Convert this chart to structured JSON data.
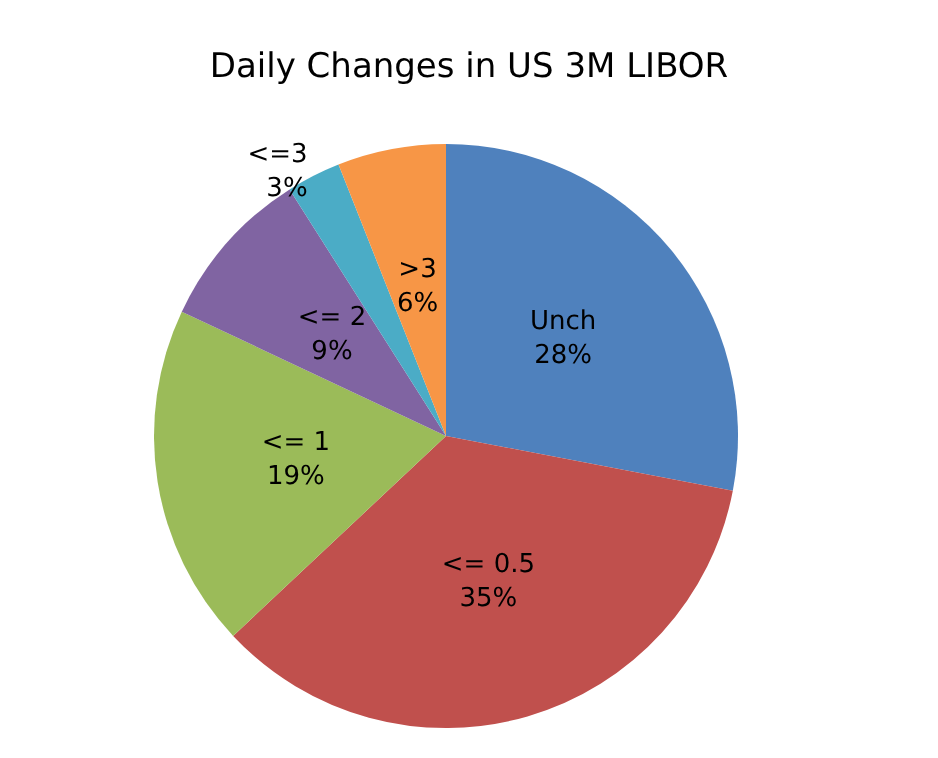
{
  "chart_data": {
    "type": "pie",
    "title": "Daily Changes in US 3M LIBOR",
    "categories": [
      "Unch",
      "<= 0.5",
      "<= 1",
      "<= 2",
      "<=3",
      ">3"
    ],
    "values": [
      28,
      35,
      19,
      9,
      3,
      6
    ],
    "value_labels": [
      "28%",
      "35%",
      "19%",
      "9%",
      "3%",
      "6%"
    ],
    "colors": [
      "#4f81bd",
      "#c0504d",
      "#9bbb59",
      "#8064a2",
      "#4bacc6",
      "#f79646"
    ],
    "legend": false
  }
}
